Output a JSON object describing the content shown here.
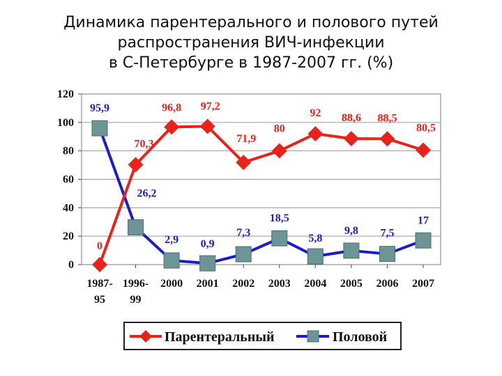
{
  "title_lines": [
    "Динамика парентерального и полового путей",
    "распространения ВИЧ-инфекции",
    "в С-Петербурге в 1987-2007 гг. (%)"
  ],
  "chart_data": {
    "type": "line",
    "title": "Динамика парентерального и полового путей распространения ВИЧ-инфекции в С-Петербурге в 1987-2007 гг. (%)",
    "categories": [
      [
        "1987-",
        "95"
      ],
      [
        "1996-",
        "99"
      ],
      [
        "2000"
      ],
      [
        "2001"
      ],
      [
        "2002"
      ],
      [
        "2003"
      ],
      [
        "2004"
      ],
      [
        "2005"
      ],
      [
        "2006"
      ],
      [
        "2007"
      ]
    ],
    "ylim": [
      0,
      120
    ],
    "yticks": [
      0,
      20,
      40,
      60,
      80,
      100,
      120
    ],
    "grid": true,
    "legend_position": "bottom",
    "series": [
      {
        "name": "Парентеральный",
        "color": "#e8231c",
        "marker": "diamond",
        "values": [
          0,
          70.3,
          96.8,
          97.2,
          71.9,
          80,
          92,
          88.6,
          88.5,
          80.5
        ],
        "labels": [
          "0",
          "70,3",
          "96,8",
          "97,2",
          "71,9",
          "80",
          "92",
          "88,6",
          "88,5",
          "80,5"
        ]
      },
      {
        "name": "Половой",
        "color": "#1c1ccc",
        "marker": "square",
        "marker_color": "#6e9596",
        "values": [
          95.9,
          26.2,
          2.9,
          0.9,
          7.3,
          18.5,
          5.8,
          9.8,
          7.5,
          17
        ],
        "labels": [
          "95,9",
          "26,2",
          "2,9",
          "0,9",
          "7,3",
          "18,5",
          "5,8",
          "9,8",
          "7,5",
          "17"
        ]
      }
    ]
  }
}
